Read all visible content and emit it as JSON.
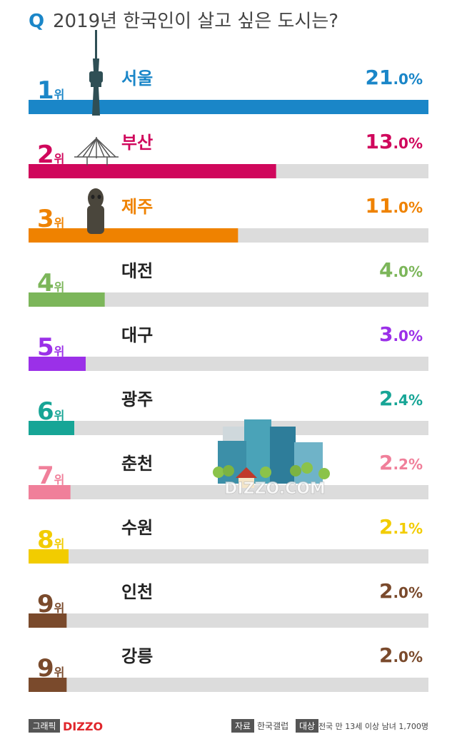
{
  "chart_data": {
    "type": "hbar",
    "q_mark": "Q",
    "title": "2019년 한국인이 살고 싶은 도시는?",
    "ranks": [
      "1위",
      "2위",
      "3위",
      "4위",
      "5위",
      "6위",
      "7위",
      "8위",
      "9위",
      "9위"
    ],
    "categories": [
      "서울",
      "부산",
      "제주",
      "대전",
      "대구",
      "광주",
      "춘천",
      "수원",
      "인천",
      "강릉"
    ],
    "values": [
      21.0,
      13.0,
      11.0,
      4.0,
      3.0,
      2.4,
      2.2,
      2.1,
      2.0,
      2.0
    ],
    "value_labels": [
      "21.0%",
      "13.0%",
      "11.0%",
      "4.0%",
      "3.0%",
      "2.4%",
      "2.2%",
      "2.1%",
      "2.0%",
      "2.0%"
    ],
    "colors": [
      "#1a86c8",
      "#d0075c",
      "#ef8200",
      "#7cb65a",
      "#9b30e8",
      "#17a596",
      "#f07f9a",
      "#f2cc00",
      "#7a4a2c",
      "#7a4a2c"
    ],
    "track_color": "#dcdcdc",
    "xlim": [
      0,
      21
    ],
    "watermark": "DIZZO.COM",
    "footer": {
      "graphic_label": "그래픽",
      "brand": "DIZZO",
      "source_label": "자료",
      "source": "한국갤럽",
      "target_label": "대상",
      "target": "전국 만 13세 이상 남녀 1,700명"
    }
  }
}
